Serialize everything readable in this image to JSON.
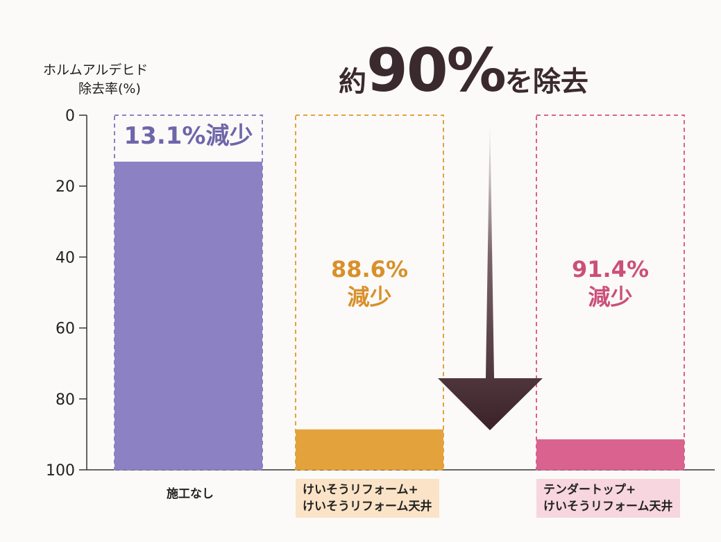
{
  "chart_data": {
    "type": "bar",
    "ylabel_lines": [
      "ホルムアルデヒド",
      "除去率(%)"
    ],
    "yticks": [
      "0",
      "20",
      "40",
      "60",
      "80",
      "100"
    ],
    "ylim": [
      0,
      100
    ],
    "y_inverted": true,
    "headline": {
      "prefix": "約",
      "number": "90%",
      "suffix": "を除去"
    },
    "categories": [
      {
        "lines": [
          "施工なし"
        ]
      },
      {
        "lines": [
          "けいそうリフォーム+",
          "けいそうリフォーム天井"
        ]
      },
      {
        "lines": [
          "テンダートップ+",
          "けいそうリフォーム天井"
        ]
      }
    ],
    "values": [
      13.1,
      88.6,
      91.4
    ],
    "annotations": [
      {
        "lines": [
          "13.1%減少"
        ]
      },
      {
        "lines": [
          "88.6%",
          "減少"
        ]
      },
      {
        "lines": [
          "91.4%",
          "減少"
        ]
      }
    ],
    "colors": [
      "#8b81c3",
      "#e3a23c",
      "#d9628e"
    ],
    "annotation_colors": [
      "#6e66aa",
      "#d9902a",
      "#cc4f7a"
    ],
    "label_backgrounds": [
      "",
      "#fbe3c7",
      "#f7d6df"
    ]
  }
}
